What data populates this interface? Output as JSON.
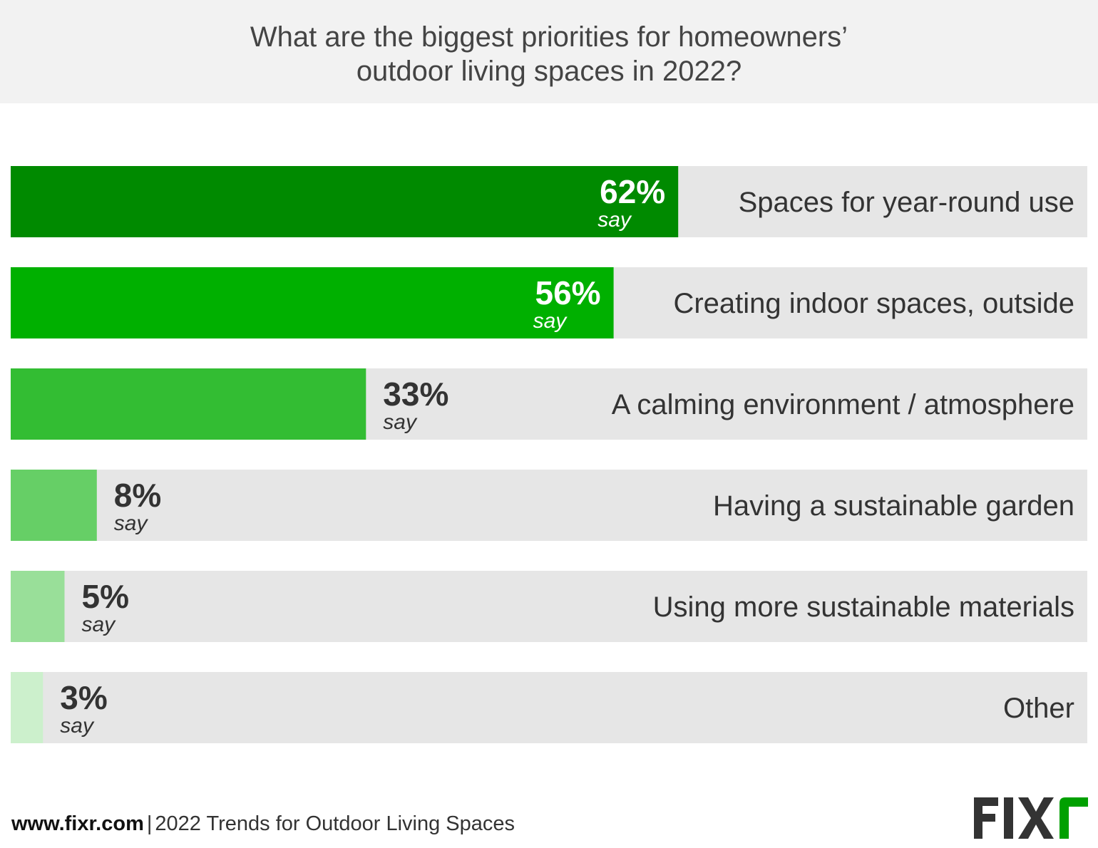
{
  "header": {
    "title_line1": "What are the biggest priorities for homeowners’",
    "title_line2": "outdoor living spaces in 2022?"
  },
  "chart_data": {
    "type": "bar",
    "orientation": "horizontal",
    "title": "What are the biggest priorities for homeowners’ outdoor living spaces in 2022?",
    "categories": [
      "Spaces for year-round use",
      "Creating indoor spaces, outside",
      "A calming environment / atmosphere",
      "Having a sustainable garden",
      "Using more sustainable materials",
      "Other"
    ],
    "values": [
      62,
      56,
      33,
      8,
      5,
      3
    ],
    "value_labels": [
      "62%",
      "56%",
      "33%",
      "8%",
      "5%",
      "3%"
    ],
    "value_suffix": "say",
    "xlim": [
      0,
      100
    ],
    "grid": false,
    "legend": "none",
    "bar_colors": [
      "#008a00",
      "#00b000",
      "#33bd33",
      "#66cf66",
      "#99df99",
      "#ccf0cc"
    ],
    "track_color": "#e6e6e6"
  },
  "footer": {
    "site": "www.fixr.com",
    "separator": "|",
    "caption": "2022 Trends for Outdoor Living Spaces"
  },
  "logo": {
    "text": "FIXR",
    "letter_color": "#333333",
    "accent_color": "#00a000"
  }
}
